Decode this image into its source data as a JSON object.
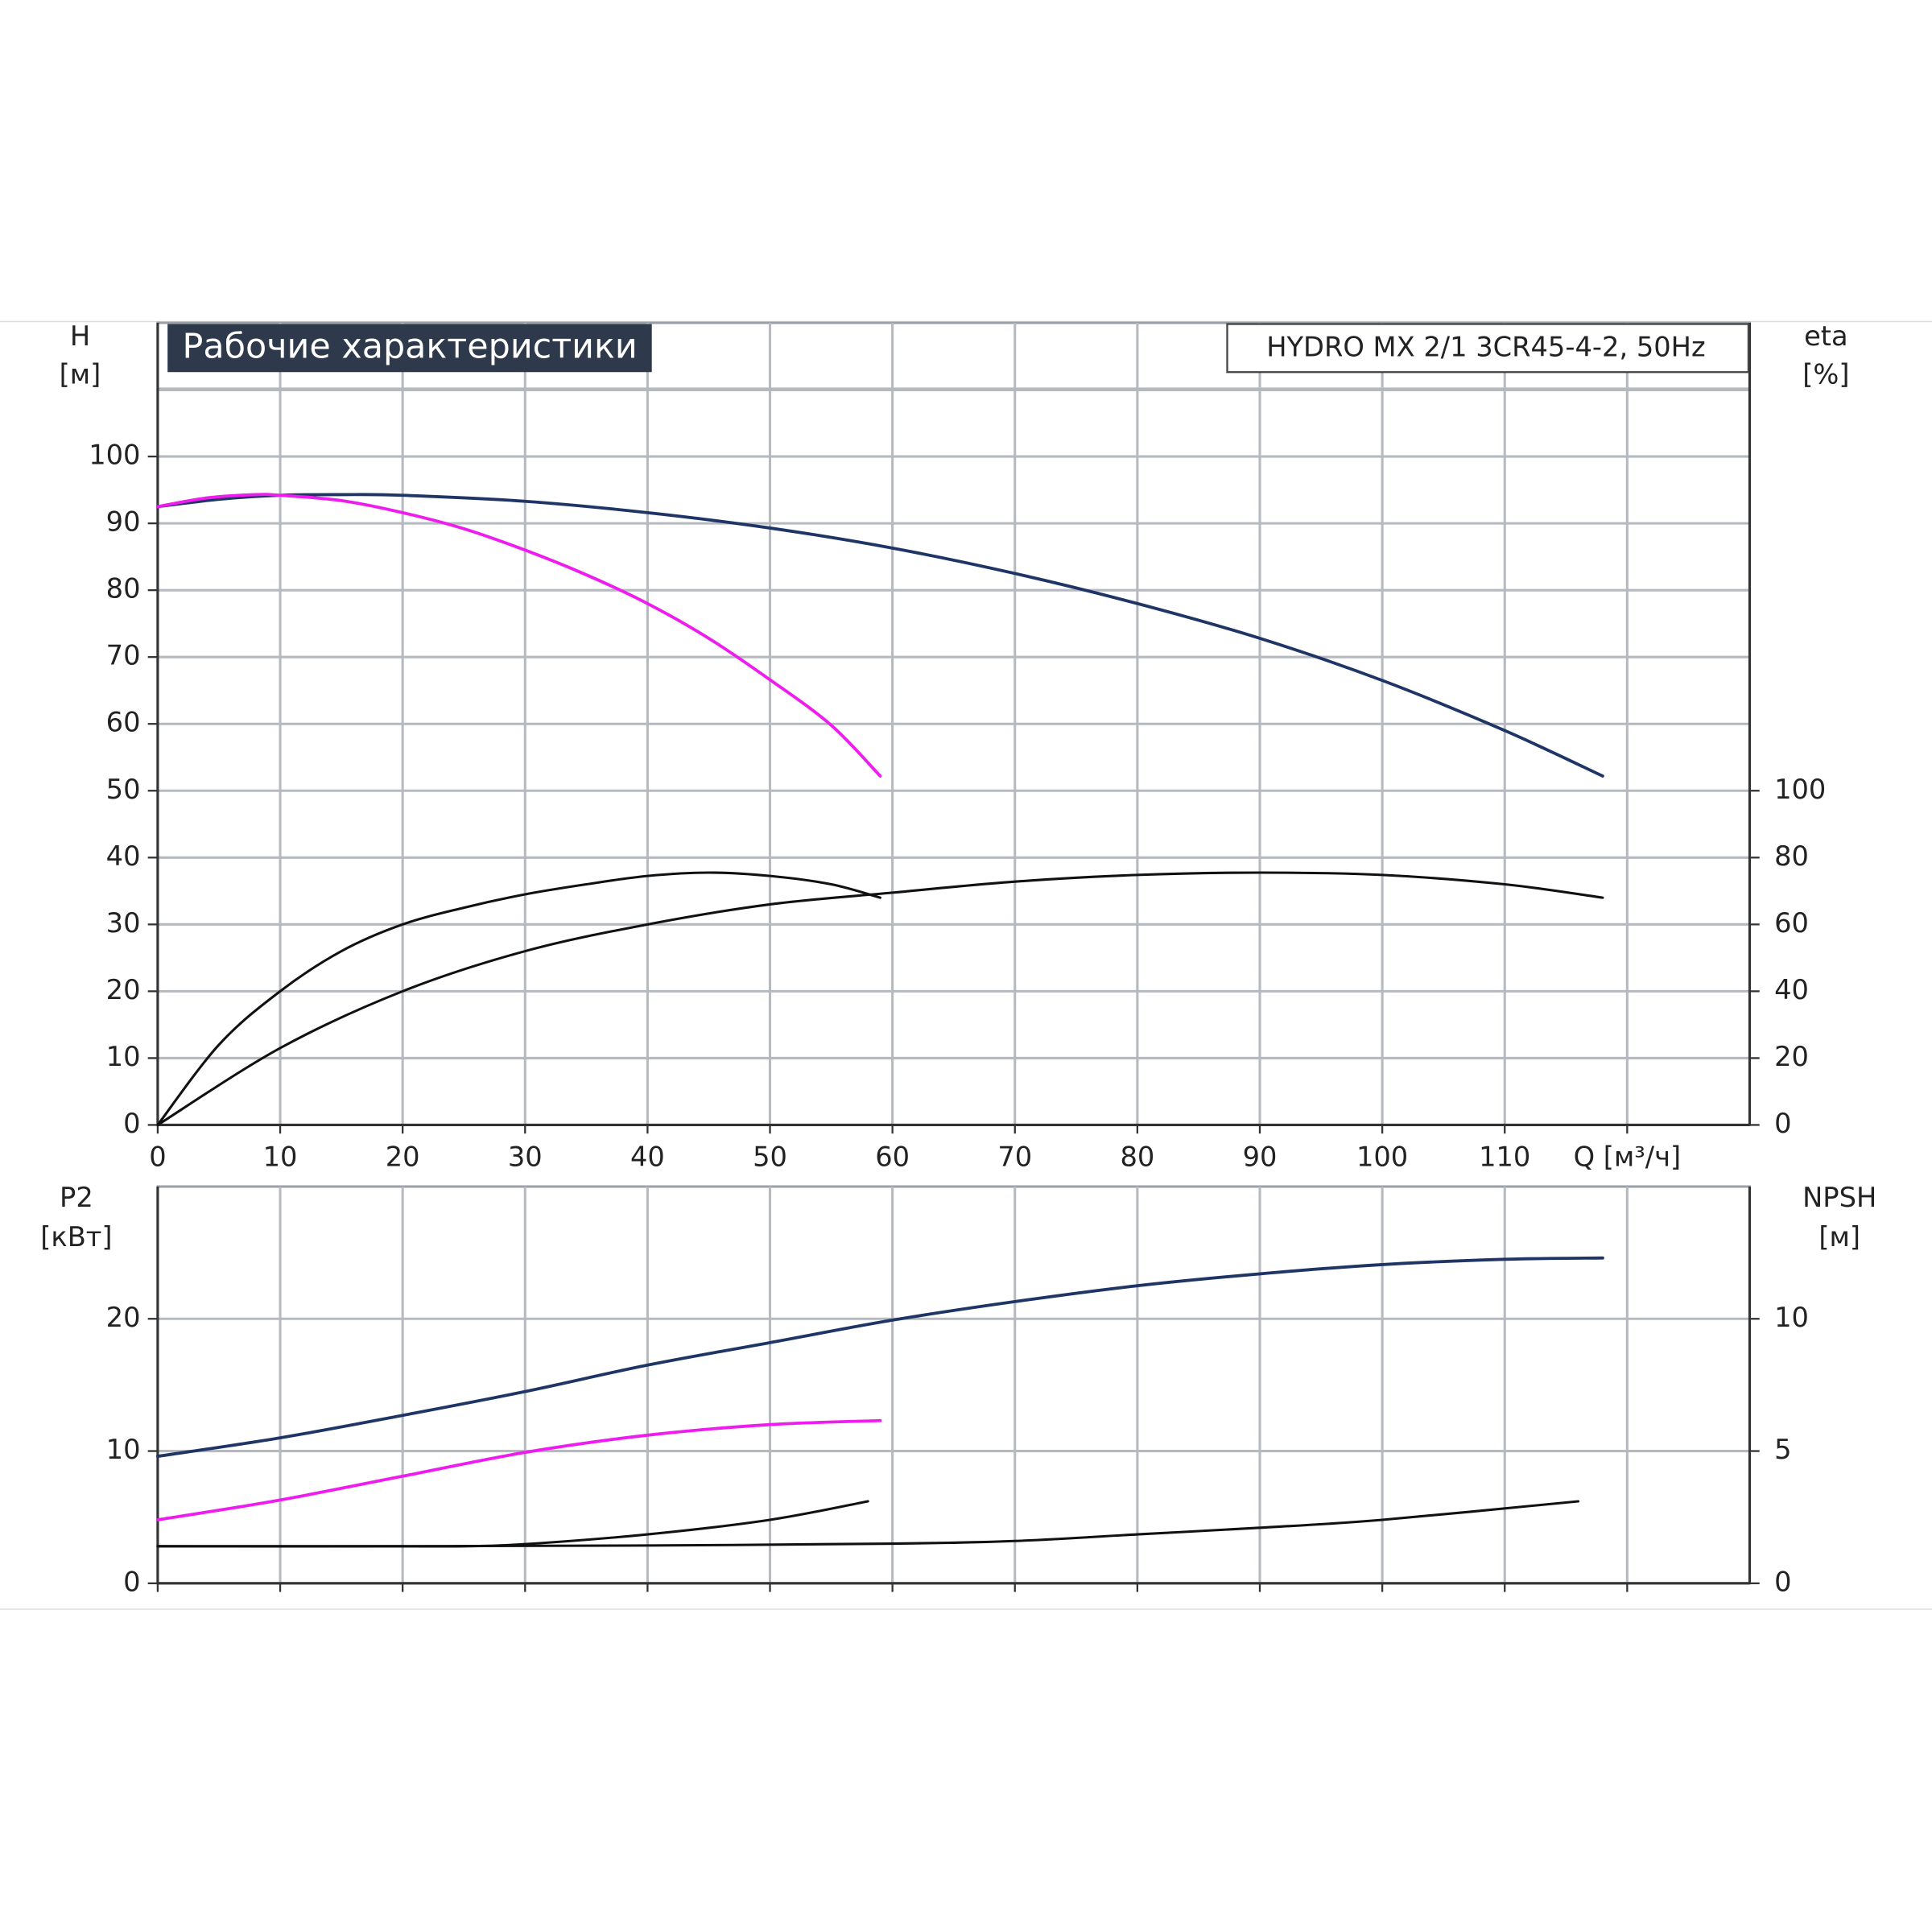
{
  "chart_data": [
    {
      "type": "line",
      "title": "Рабочие характеристики",
      "subtitle": "HYDRO MX 2/1 3CR45-4-2, 50Hz",
      "ylabel": "H",
      "yunit": "[м]",
      "y2label": "eta",
      "y2unit": "[%]",
      "xlim": [
        0,
        130
      ],
      "xticks": [
        0,
        10,
        20,
        30,
        40,
        50,
        60,
        70,
        80,
        90,
        100,
        110,
        {
          "value": 120,
          "label": "Q [м³/ч]"
        }
      ],
      "ylim": [
        0,
        120
      ],
      "yticks": [
        0,
        10,
        20,
        30,
        40,
        50,
        60,
        70,
        80,
        90,
        100
      ],
      "y2lim": [
        0,
        240
      ],
      "y2ticks": [
        0,
        20,
        40,
        60,
        80,
        100
      ],
      "grid": true,
      "series": [
        {
          "color": "#1f3566",
          "x": [
            0,
            5,
            10,
            15,
            20,
            30,
            40,
            50,
            60,
            70,
            80,
            90,
            100,
            110,
            118
          ],
          "values": [
            92.5,
            93.6,
            94.2,
            94.3,
            94.2,
            93.3,
            91.6,
            89.3,
            86.3,
            82.5,
            78,
            72.8,
            66.5,
            59,
            52.2
          ]
        },
        {
          "color": "#ee1cee",
          "x": [
            0,
            4,
            8,
            10,
            15,
            20,
            25,
            30,
            35,
            40,
            45,
            50,
            55,
            59
          ],
          "values": [
            92.5,
            93.8,
            94.3,
            94.2,
            93.4,
            91.6,
            89.2,
            86,
            82.3,
            78,
            72.8,
            66.6,
            59.8,
            52.2
          ]
        },
        {
          "color": "#111111",
          "axis": "y2",
          "x": [
            0,
            5,
            10,
            15,
            20,
            25,
            30,
            35,
            40,
            45,
            50,
            55,
            59
          ],
          "values": [
            0,
            24,
            40,
            52,
            60,
            65,
            69,
            72,
            74.5,
            75.5,
            74.5,
            72,
            68
          ]
        },
        {
          "color": "#111111",
          "axis": "y2",
          "x": [
            0,
            10,
            20,
            30,
            40,
            50,
            60,
            70,
            80,
            90,
            100,
            110,
            118
          ],
          "values": [
            0,
            23,
            40,
            52,
            60,
            66,
            69.5,
            72.8,
            74.8,
            75.5,
            74.8,
            72,
            68
          ]
        }
      ]
    },
    {
      "type": "line",
      "ylabel": "P2",
      "yunit": "[кВт]",
      "y2label": "NPSH",
      "y2unit": "[м]",
      "ylim": [
        0,
        30
      ],
      "yticks": [
        0,
        10,
        20
      ],
      "y2lim": [
        0,
        15
      ],
      "y2ticks": [
        0,
        5,
        10
      ],
      "grid": true,
      "series": [
        {
          "color": "#1f3566",
          "x": [
            0,
            10,
            20,
            30,
            40,
            50,
            60,
            70,
            80,
            90,
            100,
            110,
            118
          ],
          "values": [
            9.6,
            11,
            12.7,
            14.5,
            16.5,
            18.2,
            19.9,
            21.3,
            22.5,
            23.4,
            24.1,
            24.5,
            24.6
          ]
        },
        {
          "color": "#ee1cee",
          "x": [
            0,
            10,
            20,
            30,
            40,
            50,
            59
          ],
          "values": [
            4.8,
            6.3,
            8.1,
            9.9,
            11.2,
            12,
            12.3
          ]
        },
        {
          "color": "#111111",
          "axis": "y2",
          "x": [
            0,
            10,
            20,
            25,
            30,
            40,
            50,
            58
          ],
          "values": [
            1.4,
            1.4,
            1.4,
            1.4,
            1.48,
            1.85,
            2.4,
            3.1
          ]
        },
        {
          "color": "#111111",
          "axis": "y2",
          "x": [
            0,
            20,
            40,
            60,
            70,
            80,
            90,
            100,
            116
          ],
          "values": [
            1.4,
            1.4,
            1.43,
            1.5,
            1.6,
            1.85,
            2.1,
            2.4,
            3.1
          ]
        }
      ]
    }
  ]
}
